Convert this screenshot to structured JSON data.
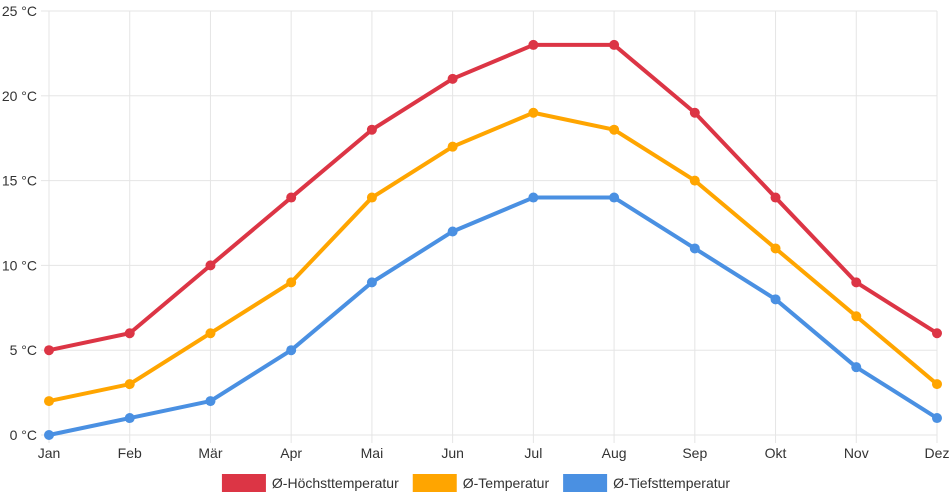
{
  "chart_data": {
    "type": "line",
    "categories": [
      "Jan",
      "Feb",
      "Mär",
      "Apr",
      "Mai",
      "Jun",
      "Jul",
      "Aug",
      "Sep",
      "Okt",
      "Nov",
      "Dez"
    ],
    "series": [
      {
        "name": "Ø-Höchsttemperatur",
        "color": "#dc3545",
        "values": [
          5,
          6,
          10,
          14,
          18,
          21,
          23,
          23,
          19,
          14,
          9,
          6
        ]
      },
      {
        "name": "Ø-Temperatur",
        "color": "#ffa500",
        "values": [
          2,
          3,
          6,
          9,
          14,
          17,
          19,
          18,
          15,
          11,
          7,
          3
        ]
      },
      {
        "name": "Ø-Tiefsttemperatur",
        "color": "#4a90e2",
        "values": [
          0,
          1,
          2,
          5,
          9,
          12,
          14,
          14,
          11,
          8,
          4,
          1
        ]
      }
    ],
    "y_ticks": [
      "0 °C",
      "5 °C",
      "10 °C",
      "15 °C",
      "20 °C",
      "25 °C"
    ],
    "ylim": [
      0,
      25
    ],
    "y_tick_step": 5,
    "grid": true,
    "legend_position": "bottom-center"
  }
}
